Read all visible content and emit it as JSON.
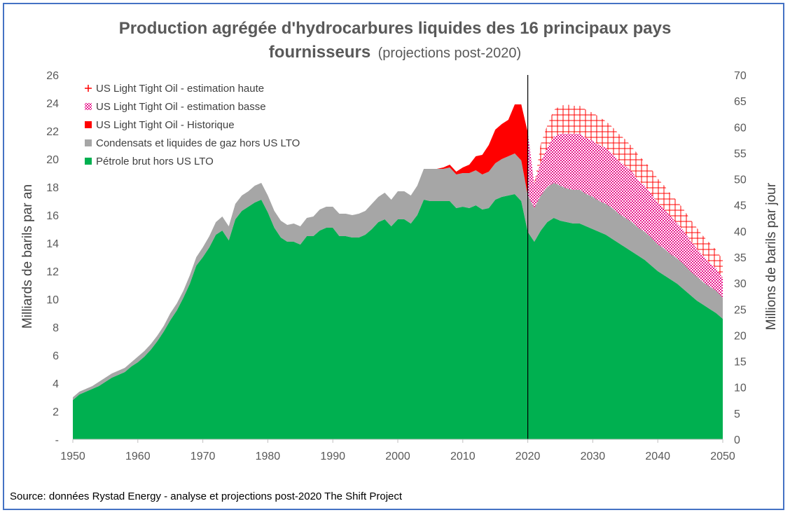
{
  "chart_data": {
    "type": "area",
    "title_bold_1": "Production agrégée d'hydrocarbures liquides des 16 principaux pays",
    "title_bold_2": "fournisseurs",
    "title_sub": "(projections post-2020)",
    "ylabel_left": "Milliards de barils par an",
    "ylabel_right": "Millions de barils par jour",
    "source": "Source: données Rystad Energy - analyse et projections post-2020  The Shift Project",
    "ylim_left": [
      0,
      26
    ],
    "ylim_right": [
      0,
      70
    ],
    "xlim": [
      1950,
      2050
    ],
    "yticks_left": [
      "-",
      "2",
      "4",
      "6",
      "8",
      "10",
      "12",
      "14",
      "16",
      "18",
      "20",
      "22",
      "24",
      "26"
    ],
    "yticks_right": [
      "0",
      "5",
      "10",
      "15",
      "20",
      "25",
      "30",
      "35",
      "40",
      "45",
      "50",
      "55",
      "60",
      "65",
      "70"
    ],
    "xticks": [
      "1950",
      "1960",
      "1970",
      "1980",
      "1990",
      "2000",
      "2010",
      "2020",
      "2030",
      "2040",
      "2050"
    ],
    "divider_year": 2020,
    "legend": [
      {
        "key": "lto_high",
        "label": "US Light Tight Oil - estimation haute",
        "color": "#ff0000"
      },
      {
        "key": "lto_low",
        "label": "US Light Tight Oil - estimation basse",
        "color": "#e8188c"
      },
      {
        "key": "lto_hist",
        "label": "US Light Tight Oil - Historique",
        "color": "#ff0000"
      },
      {
        "key": "ngl",
        "label": "Condensats et liquides de gaz hors US LTO",
        "color": "#a6a6a6"
      },
      {
        "key": "crude",
        "label": "Pétrole brut hors US LTO",
        "color": "#00b050"
      }
    ],
    "series_hist": {
      "years": [
        1950,
        1951,
        1952,
        1953,
        1954,
        1955,
        1956,
        1957,
        1958,
        1959,
        1960,
        1961,
        1962,
        1963,
        1964,
        1965,
        1966,
        1967,
        1968,
        1969,
        1970,
        1971,
        1972,
        1973,
        1974,
        1975,
        1976,
        1977,
        1978,
        1979,
        1980,
        1981,
        1982,
        1983,
        1984,
        1985,
        1986,
        1987,
        1988,
        1989,
        1990,
        1991,
        1992,
        1993,
        1994,
        1995,
        1996,
        1997,
        1998,
        1999,
        2000,
        2001,
        2002,
        2003,
        2004,
        2005,
        2006,
        2007,
        2008,
        2009,
        2010,
        2011,
        2012,
        2013,
        2014,
        2015,
        2016,
        2017,
        2018,
        2019,
        2020
      ],
      "crude": [
        2.8,
        3.2,
        3.4,
        3.6,
        3.8,
        4.1,
        4.4,
        4.6,
        4.8,
        5.2,
        5.5,
        5.9,
        6.4,
        7.0,
        7.7,
        8.5,
        9.2,
        10.1,
        11.1,
        12.4,
        13.0,
        13.7,
        14.6,
        14.9,
        14.2,
        15.7,
        16.3,
        16.6,
        16.9,
        17.1,
        16.2,
        15.1,
        14.4,
        14.1,
        14.1,
        13.9,
        14.5,
        14.5,
        14.9,
        15.1,
        15.1,
        14.5,
        14.5,
        14.4,
        14.4,
        14.6,
        15.0,
        15.5,
        15.7,
        15.2,
        15.7,
        15.7,
        15.4,
        16.0,
        17.1,
        17.0,
        17.0,
        17.0,
        17.0,
        16.5,
        16.6,
        16.5,
        16.7,
        16.4,
        16.5,
        17.1,
        17.3,
        17.4,
        17.5,
        17.0,
        14.8
      ],
      "ngl": [
        0.2,
        0.2,
        0.2,
        0.2,
        0.3,
        0.3,
        0.3,
        0.3,
        0.3,
        0.3,
        0.4,
        0.4,
        0.4,
        0.4,
        0.4,
        0.5,
        0.5,
        0.5,
        0.6,
        0.6,
        0.7,
        0.8,
        0.9,
        1.0,
        1.0,
        1.1,
        1.1,
        1.1,
        1.2,
        1.2,
        1.2,
        1.2,
        1.2,
        1.2,
        1.3,
        1.3,
        1.3,
        1.4,
        1.5,
        1.5,
        1.5,
        1.6,
        1.6,
        1.6,
        1.7,
        1.7,
        1.8,
        1.8,
        1.9,
        1.9,
        2.0,
        2.0,
        2.0,
        2.1,
        2.2,
        2.3,
        2.3,
        2.3,
        2.4,
        2.4,
        2.4,
        2.5,
        2.5,
        2.5,
        2.6,
        2.6,
        2.7,
        2.8,
        2.9,
        2.9,
        2.6
      ],
      "lto_hist": [
        0,
        0,
        0,
        0,
        0,
        0,
        0,
        0,
        0,
        0,
        0,
        0,
        0,
        0,
        0,
        0,
        0,
        0,
        0,
        0,
        0,
        0,
        0,
        0,
        0,
        0,
        0,
        0,
        0,
        0,
        0,
        0,
        0,
        0,
        0,
        0,
        0,
        0,
        0,
        0,
        0,
        0,
        0,
        0,
        0,
        0,
        0,
        0,
        0,
        0,
        0,
        0,
        0,
        0,
        0,
        0,
        0,
        0.1,
        0.2,
        0.2,
        0.4,
        0.6,
        1.0,
        1.4,
        1.9,
        2.4,
        2.5,
        2.6,
        3.5,
        4.0,
        4.5
      ]
    },
    "series_proj": {
      "years": [
        2020,
        2021,
        2022,
        2023,
        2024,
        2025,
        2026,
        2027,
        2028,
        2029,
        2030,
        2031,
        2032,
        2033,
        2034,
        2035,
        2036,
        2037,
        2038,
        2039,
        2040,
        2041,
        2042,
        2043,
        2044,
        2045,
        2046,
        2047,
        2048,
        2049,
        2050
      ],
      "crude": [
        14.8,
        14.1,
        14.9,
        15.5,
        15.8,
        15.6,
        15.5,
        15.4,
        15.4,
        15.2,
        15.0,
        14.8,
        14.6,
        14.3,
        14.0,
        13.7,
        13.4,
        13.1,
        12.8,
        12.4,
        12.0,
        11.7,
        11.4,
        11.1,
        10.7,
        10.3,
        9.9,
        9.6,
        9.3,
        9.0,
        8.6
      ],
      "ngl": [
        2.6,
        2.4,
        2.5,
        2.5,
        2.5,
        2.5,
        2.4,
        2.4,
        2.4,
        2.3,
        2.3,
        2.2,
        2.2,
        2.2,
        2.1,
        2.1,
        2.1,
        2.0,
        2.0,
        2.0,
        1.9,
        1.9,
        1.8,
        1.8,
        1.8,
        1.7,
        1.7,
        1.6,
        1.6,
        1.6,
        1.5
      ],
      "lto_low": [
        4.5,
        1.7,
        2.4,
        2.8,
        3.3,
        3.7,
        3.9,
        4.0,
        4.0,
        4.0,
        4.0,
        4.0,
        4.0,
        3.9,
        3.8,
        3.7,
        3.6,
        3.4,
        3.3,
        3.1,
        3.0,
        2.8,
        2.7,
        2.5,
        2.4,
        2.2,
        2.0,
        1.9,
        1.7,
        1.6,
        1.4
      ],
      "lto_high": [
        4.5,
        1.7,
        3.7,
        4.4,
        5.2,
        5.7,
        6.0,
        6.0,
        6.0,
        6.0,
        6.0,
        6.0,
        5.9,
        5.8,
        5.7,
        5.6,
        5.4,
        5.2,
        5.0,
        4.9,
        4.7,
        4.5,
        4.3,
        4.1,
        3.9,
        3.7,
        3.5,
        3.3,
        3.1,
        2.9,
        2.7
      ]
    }
  }
}
